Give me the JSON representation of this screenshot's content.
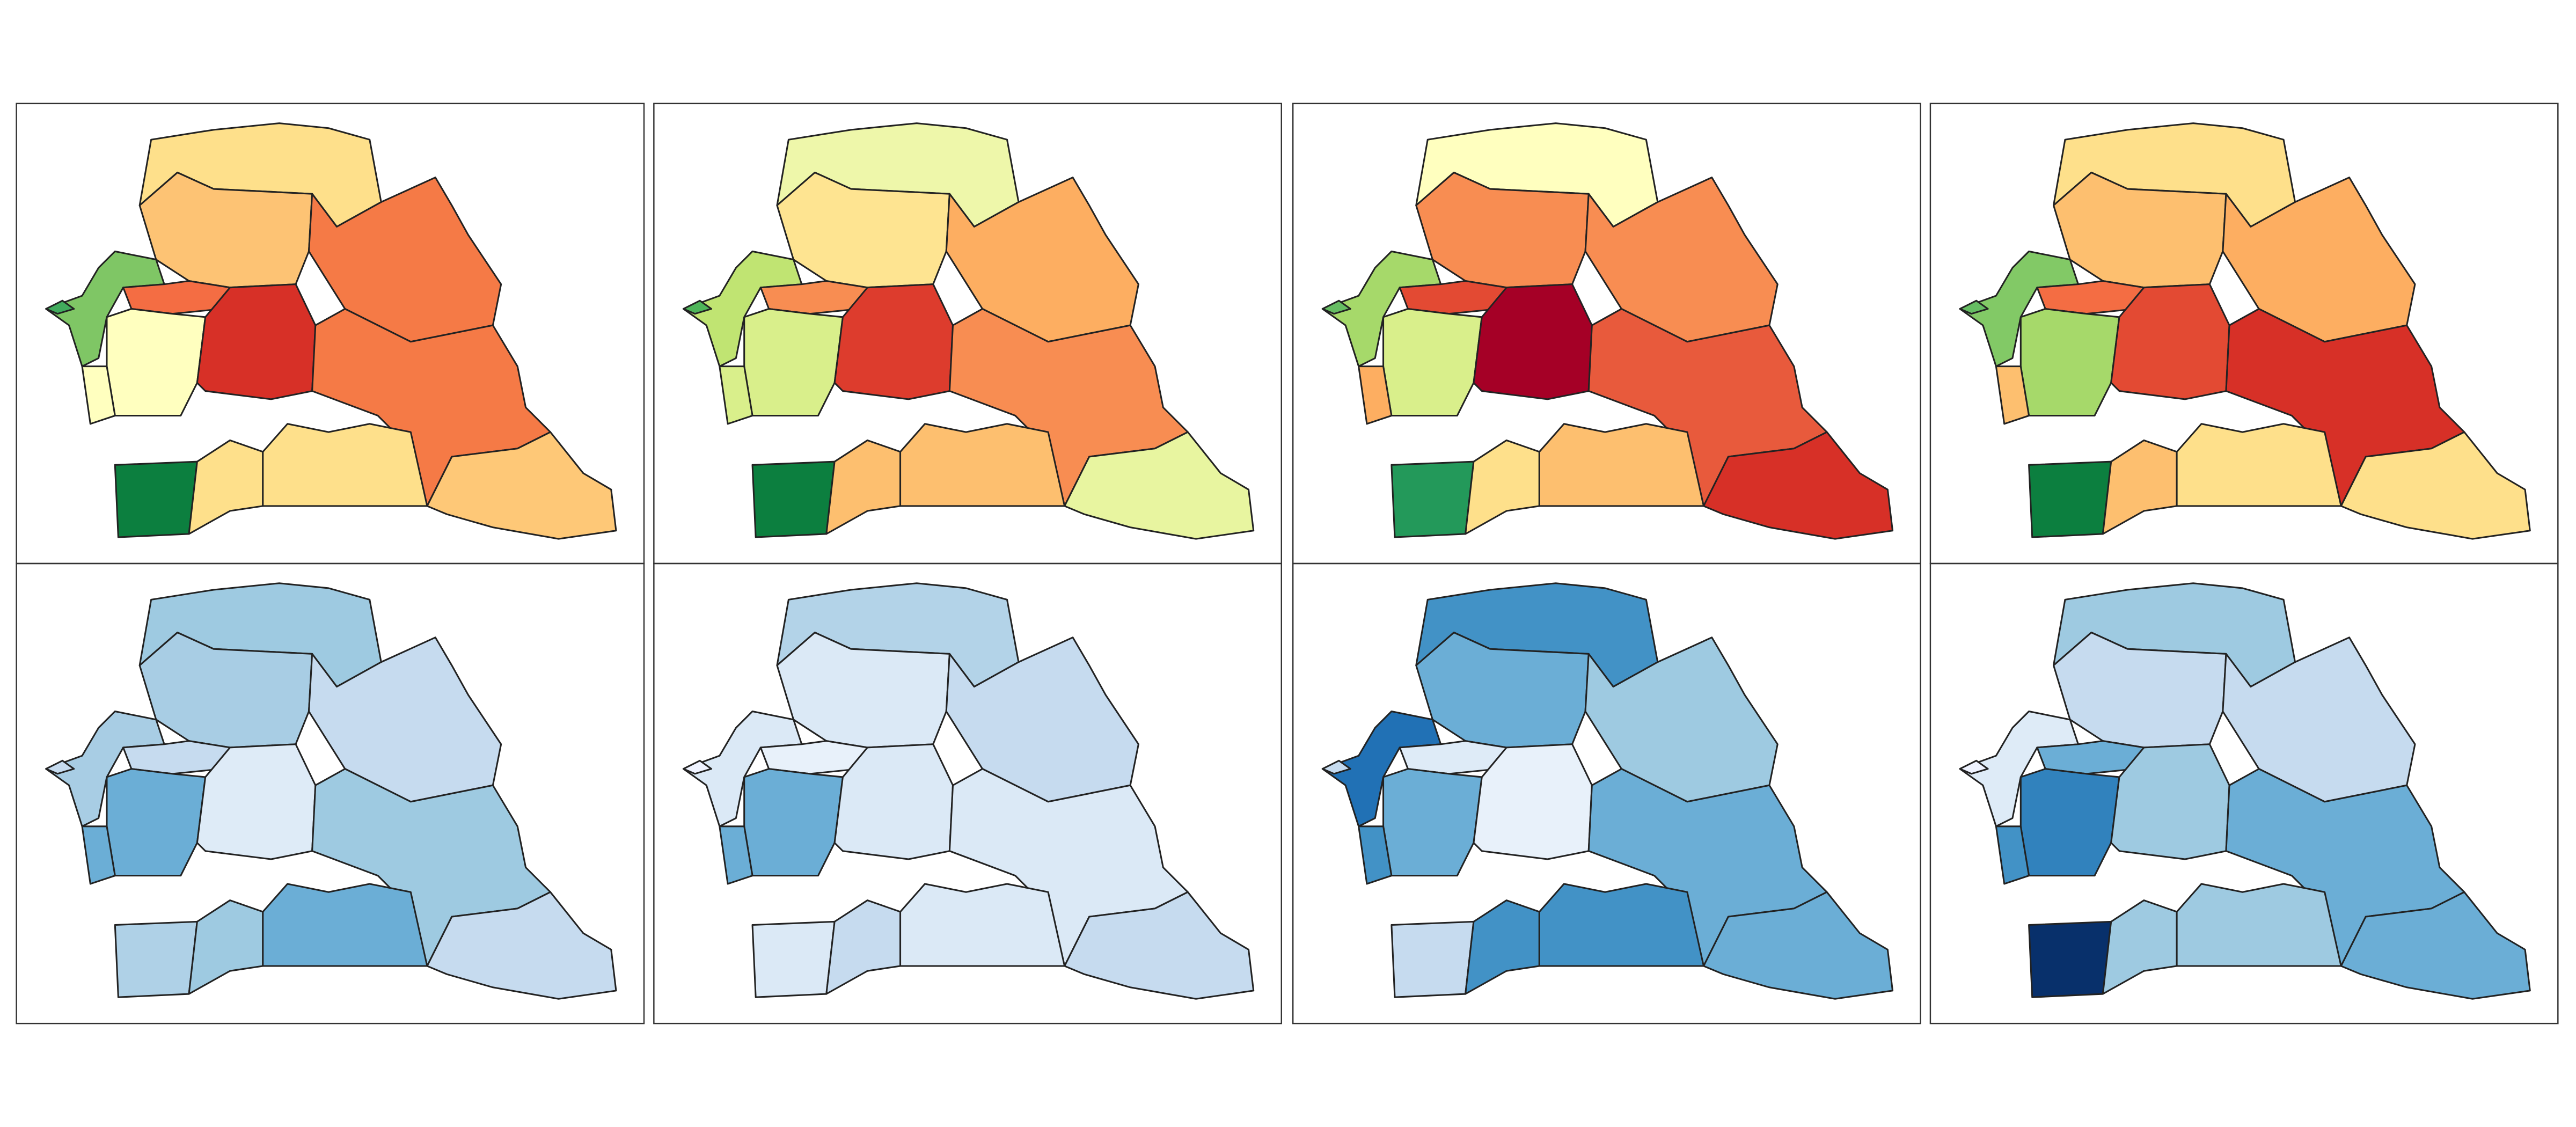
{
  "panels": [
    {
      "fills": [
        "#fee08b",
        "#fdc374",
        "#f57a46",
        "#7fc665",
        "#41ab5d",
        "#f46d43",
        "#ffffbf",
        "#ffffbf",
        "#d73027",
        "#f57a46",
        "#fec877",
        "#0c7f3f",
        "#fee08b",
        "#fee08b"
      ]
    },
    {
      "fills": [
        "#eef7aa",
        "#fee491",
        "#fdae61",
        "#c0e472",
        "#4eb55a",
        "#f88d52",
        "#d9ef8b",
        "#d9ef8b",
        "#dd3c2d",
        "#f88d52",
        "#e8f5a0",
        "#0c7f3f",
        "#fdbf6f",
        "#fdbf6f"
      ]
    },
    {
      "fills": [
        "#ffffbf",
        "#f88d52",
        "#f88d52",
        "#a6d96a",
        "#66bd63",
        "#e34a33",
        "#d9ef8b",
        "#fdae61",
        "#a50026",
        "#e85a3c",
        "#d73027",
        "#23995a",
        "#fee08b",
        "#fdbf6f"
      ]
    },
    {
      "fills": [
        "#fee08b",
        "#fdbf6f",
        "#fdae61",
        "#82c966",
        "#66bd63",
        "#f46d43",
        "#a6d96a",
        "#fdbf6f",
        "#e34a33",
        "#d73027",
        "#fee08b",
        "#0c7f3f",
        "#fdbf6f",
        "#fee08b"
      ]
    },
    {
      "fills": [
        "#9ecae1",
        "#a8cde4",
        "#c6dbef",
        "#a8cde4",
        "#c6dbef",
        "#c6dbef",
        "#6baed6",
        "#6baed6",
        "#deebf7",
        "#9ecae1",
        "#c6dbef",
        "#afd1e7",
        "#9ecae1",
        "#6baed6"
      ]
    },
    {
      "fills": [
        "#b3d3e8",
        "#dbe9f6",
        "#c6dbef",
        "#dbe9f6",
        "#eff3ff",
        "#e8f1fa",
        "#6baed6",
        "#6baed6",
        "#dbe9f6",
        "#dbe9f6",
        "#c6dbef",
        "#dbe9f6",
        "#c6dbef",
        "#dbe9f6"
      ]
    },
    {
      "fills": [
        "#4292c6",
        "#6baed6",
        "#9ecae1",
        "#2171b5",
        "#c6dbef",
        "#deebf7",
        "#6baed6",
        "#4292c6",
        "#e8f1fa",
        "#6baed6",
        "#6baed6",
        "#c6dbef",
        "#4292c6",
        "#4292c6"
      ]
    },
    {
      "fills": [
        "#9ecae1",
        "#c6dbef",
        "#c6dbef",
        "#deebf7",
        "#eff3ff",
        "#6baed6",
        "#3182bd",
        "#4292c6",
        "#9ecae1",
        "#6baed6",
        "#6baed6",
        "#08306b",
        "#9ecae1",
        "#9ecae1"
      ]
    }
  ]
}
